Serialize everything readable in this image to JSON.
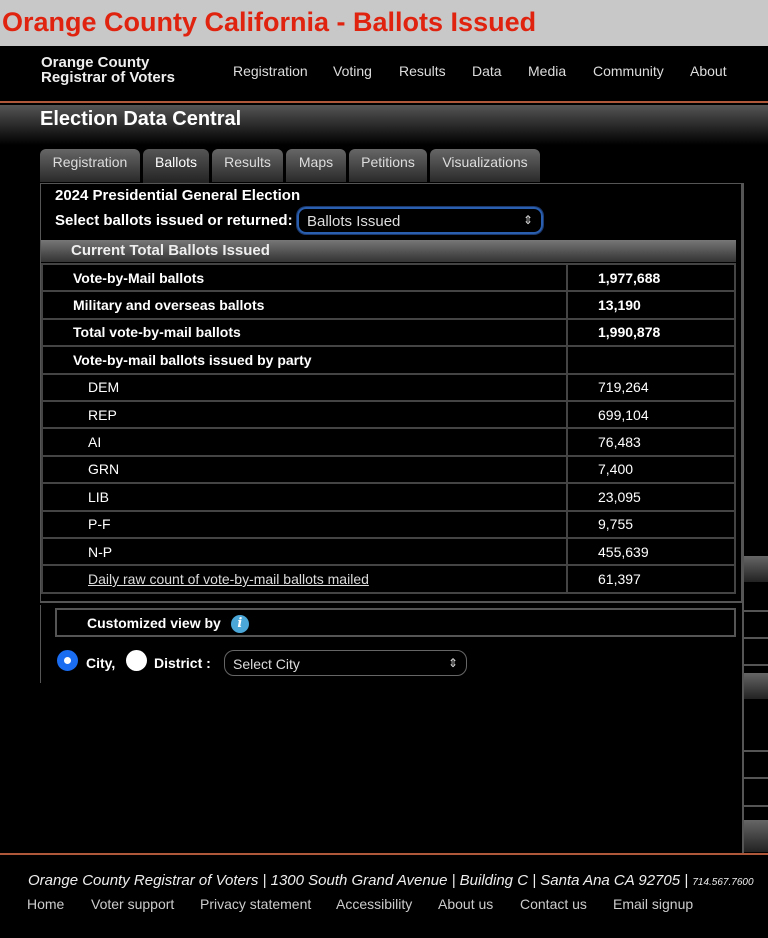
{
  "page_title": "Orange County California - Ballots Issued",
  "logo": {
    "line1": "Orange County",
    "line2": "Registrar of Voters"
  },
  "nav": [
    "Registration",
    "Voting",
    "Results",
    "Data",
    "Media",
    "Community",
    "About"
  ],
  "section_title": "Election Data Central",
  "tabs": [
    {
      "label": "Registration"
    },
    {
      "label": "Ballots",
      "active": true
    },
    {
      "label": "Results"
    },
    {
      "label": "Maps"
    },
    {
      "label": "Petitions"
    },
    {
      "label": "Visualizations"
    }
  ],
  "election": "2024 Presidential General Election",
  "select_label": "Select ballots issued or returned:",
  "select_value": "Ballots Issued",
  "table_title": "Current Total Ballots Issued",
  "rows": [
    {
      "label": "Vote-by-Mail ballots",
      "value": "1,977,688"
    },
    {
      "label": "Military and overseas ballots",
      "value": "13,190"
    },
    {
      "label": "Total vote-by-mail ballots",
      "value": "1,990,878"
    },
    {
      "label": "Vote-by-mail ballots issued by party",
      "value": ""
    },
    {
      "label": "DEM",
      "value": "719,264"
    },
    {
      "label": "REP",
      "value": "699,104"
    },
    {
      "label": "AI",
      "value": "76,483"
    },
    {
      "label": "GRN",
      "value": "7,400"
    },
    {
      "label": "LIB",
      "value": "23,095"
    },
    {
      "label": "P-F",
      "value": "9,755"
    },
    {
      "label": "N-P",
      "value": "455,639"
    },
    {
      "label": "Daily raw count of vote-by-mail ballots mailed",
      "value": "61,397"
    }
  ],
  "custom": {
    "title": "Customized view by",
    "city_label": "City,",
    "district_label": "District :",
    "city_select": "Select City",
    "selected": "City"
  },
  "footer": {
    "address": "Orange County Registrar of Voters | 1300 South Grand Avenue | Building C | Santa Ana CA 92705 |",
    "phone": "714.567.7600",
    "links": [
      "Home",
      "Voter support",
      "Privacy statement",
      "Accessibility",
      "About us",
      "Contact us",
      "Email signup"
    ]
  },
  "colors": {
    "title_red": "#e0230f",
    "accent_orange": "#b0583a",
    "radio_blue": "#1a6cf0",
    "info_blue": "#4aa7d8"
  }
}
